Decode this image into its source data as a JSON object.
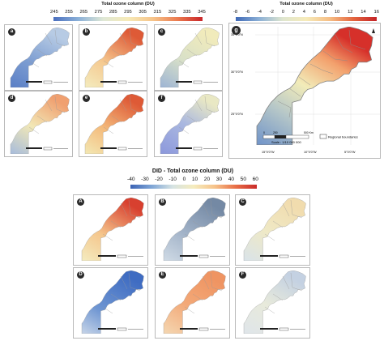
{
  "top_legend": {
    "title": "Total ozone column (DU)",
    "ticks": [
      "245",
      "255",
      "265",
      "275",
      "285",
      "295",
      "305",
      "315",
      "325",
      "335",
      "345"
    ]
  },
  "g_legend": {
    "title": "Total ozone column (DU)",
    "ticks": [
      "-8",
      "-6",
      "-4",
      "-2",
      "0",
      "2",
      "4",
      "6",
      "8",
      "10",
      "12",
      "14",
      "16"
    ]
  },
  "did_legend": {
    "title": "DID - Total ozone column (DU)",
    "ticks": [
      "-40",
      "-30",
      "-20",
      "-10",
      "0",
      "10",
      "20",
      "30",
      "40",
      "50",
      "60"
    ]
  },
  "colors": {
    "blue": "#4a78c0",
    "cream": "#f3eebe",
    "red": "#d73027",
    "slate": "#7f93ab",
    "lavender": "#9aa6dc"
  },
  "panels": [
    {
      "label": "a"
    },
    {
      "label": "b"
    },
    {
      "label": "c"
    },
    {
      "label": "d"
    },
    {
      "label": "e"
    },
    {
      "label": "f"
    }
  ],
  "g_panel": {
    "label": "g",
    "lat_labels": [
      "35°0'0\"N",
      "30°0'0\"N",
      "25°0'0\"N"
    ],
    "lon_labels": [
      "15°0'0\"W",
      "10°0'0\"W",
      "5°0'0\"W"
    ],
    "scale_ticks": [
      "0",
      "250",
      "500 Km"
    ],
    "scale_text": "Scale : 1/10 000 000",
    "legend_text": "Regional boundaries"
  },
  "did_panels": [
    {
      "label": "A"
    },
    {
      "label": "B"
    },
    {
      "label": "C"
    },
    {
      "label": "D"
    },
    {
      "label": "E"
    },
    {
      "label": "F"
    }
  ]
}
